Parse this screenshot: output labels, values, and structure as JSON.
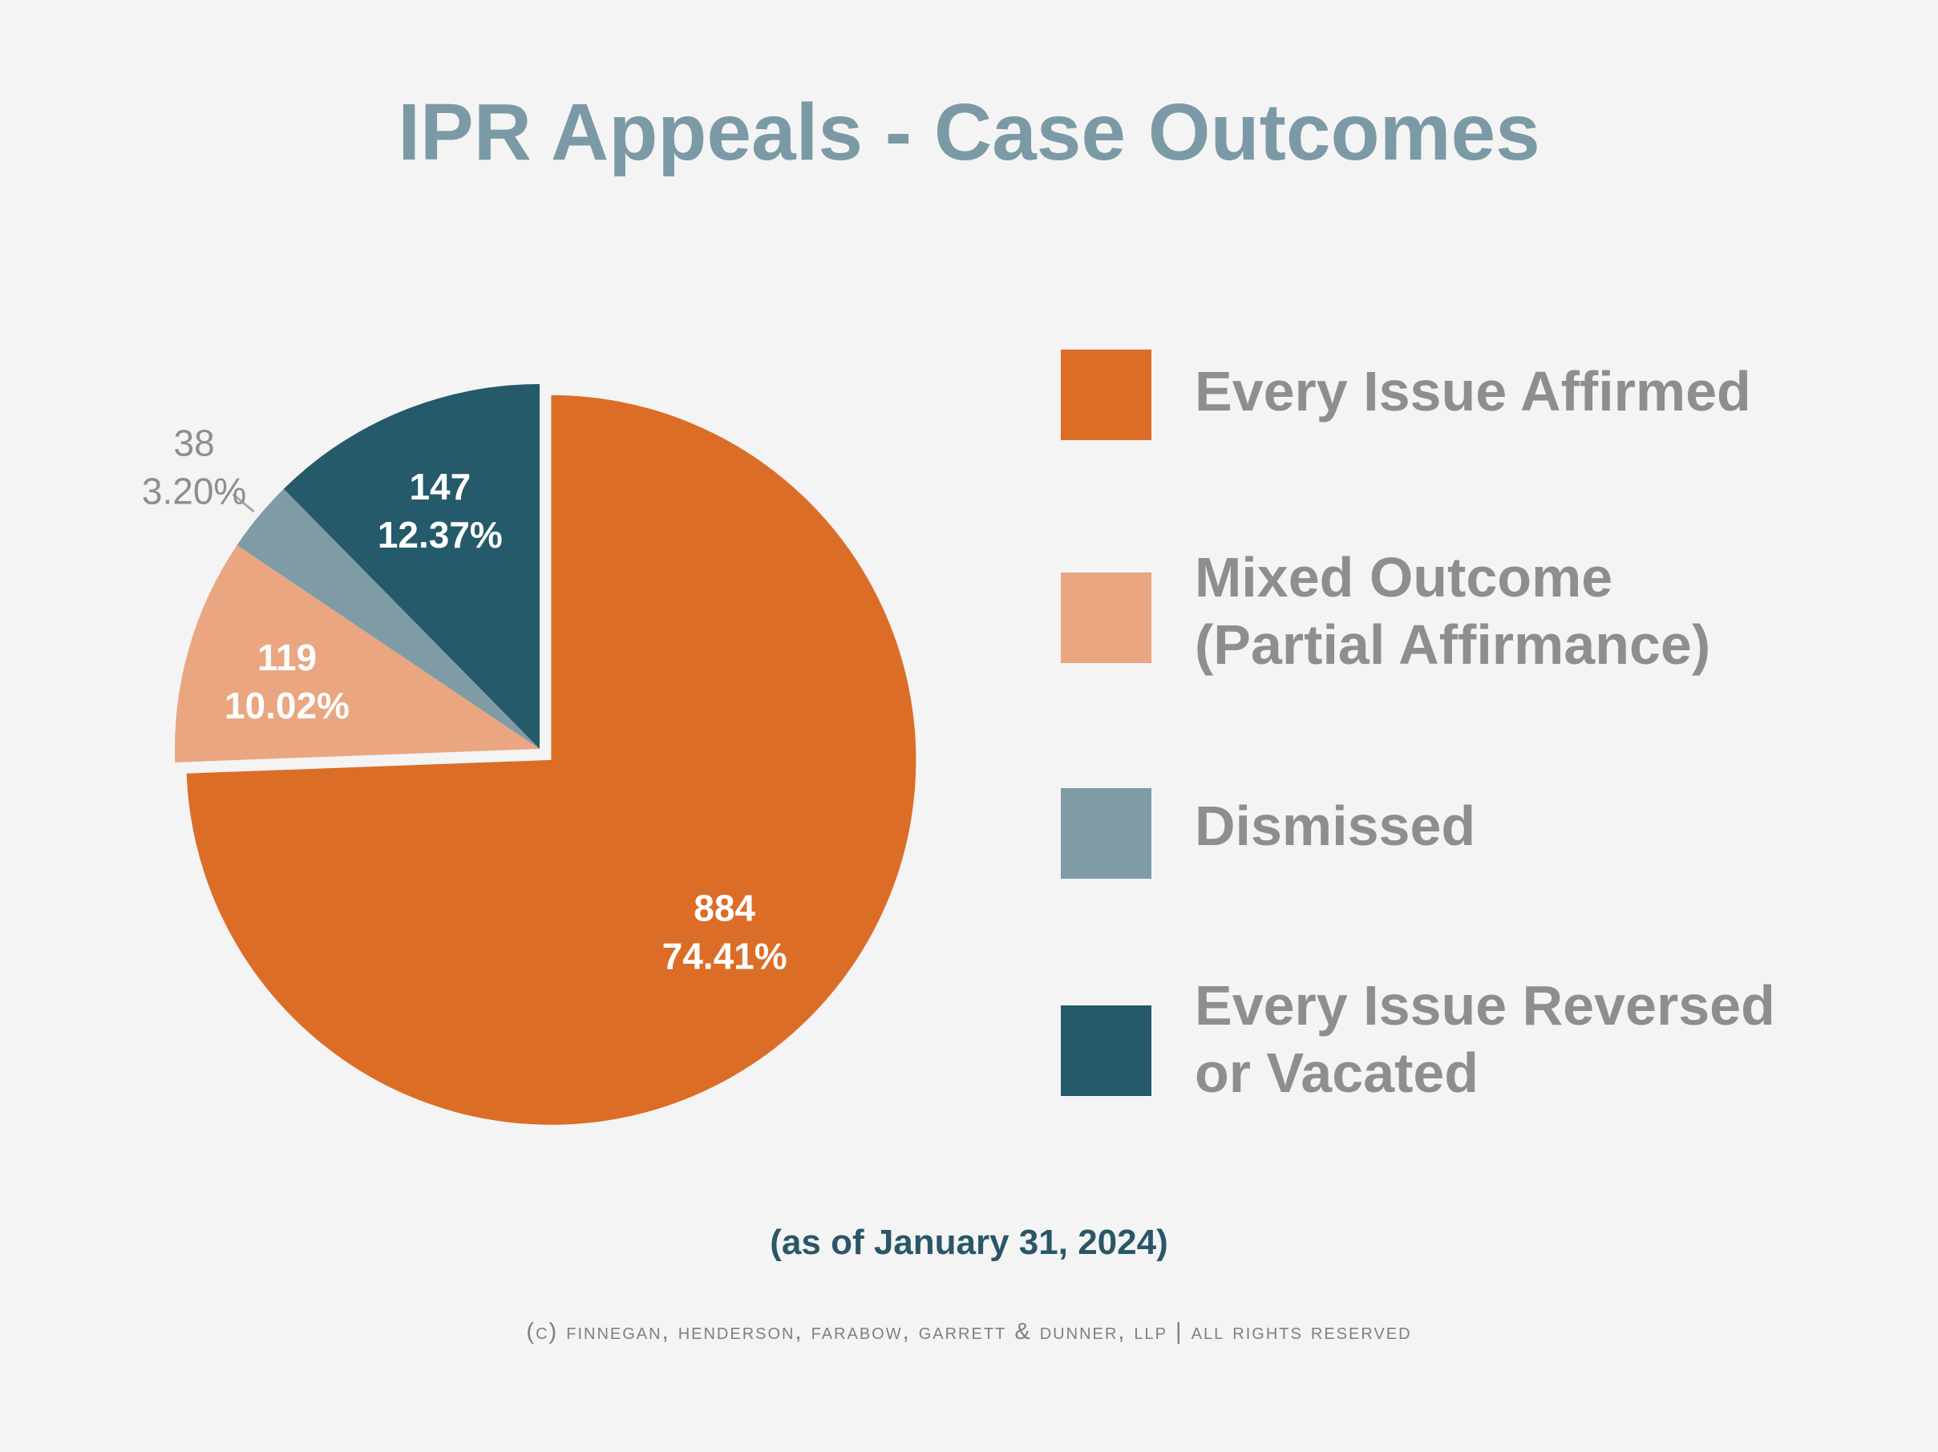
{
  "title": "IPR Appeals - Case Outcomes",
  "as_of": "(as of January 31, 2024)",
  "copyright": "(c) finnegan, henderson, farabow, garrett & dunner, llp | all rights reserved",
  "legend": [
    {
      "label_lines": [
        "Every Issue Affirmed"
      ],
      "color": "#dc6d27"
    },
    {
      "label_lines": [
        "Mixed Outcome",
        "(Partial Affirmance)"
      ],
      "color": "#eaa681"
    },
    {
      "label_lines": [
        "Dismissed"
      ],
      "color": "#7f9ca6"
    },
    {
      "label_lines": [
        "Every Issue Reversed",
        "or Vacated"
      ],
      "color": "#245a6a"
    }
  ],
  "chart_data": {
    "type": "pie",
    "title": "IPR Appeals - Case Outcomes",
    "start_angle": "12 o'clock, clockwise",
    "legend_position": "right",
    "slices": [
      {
        "name": "Every Issue Affirmed",
        "value": 884,
        "percent": "74.41%",
        "color": "#dc6d27",
        "exploded": true,
        "label_color": "#ffffff"
      },
      {
        "name": "Mixed Outcome (Partial Affirmance)",
        "value": 119,
        "percent": "10.02%",
        "color": "#eaa681",
        "exploded": false,
        "label_color": "#ffffff"
      },
      {
        "name": "Dismissed",
        "value": 38,
        "percent": "3.20%",
        "color": "#7f9ca6",
        "exploded": false,
        "label_color": "#8e8e8e",
        "label_outside": true
      },
      {
        "name": "Every Issue Reversed or Vacated",
        "value": 147,
        "percent": "12.37%",
        "color": "#245a6a",
        "exploded": false,
        "label_color": "#ffffff"
      }
    ]
  }
}
